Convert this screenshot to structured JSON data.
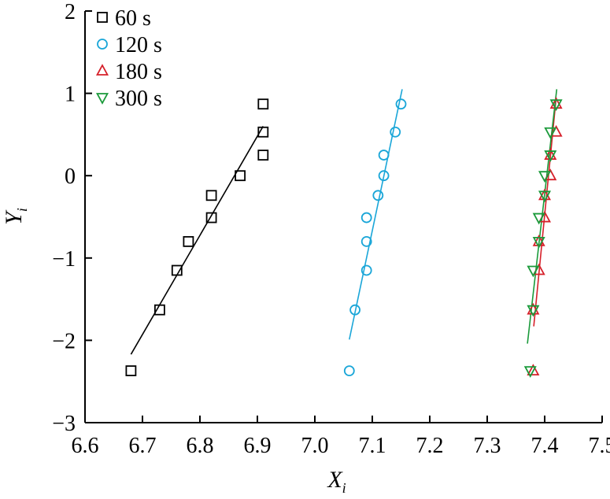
{
  "chart_data": {
    "type": "scatter",
    "xlabel": "X",
    "xlabel_sub": "i",
    "ylabel": "Y",
    "ylabel_sub": "i",
    "xlim": [
      6.6,
      7.5
    ],
    "ylim": [
      -3,
      2
    ],
    "xticks": [
      6.6,
      6.7,
      6.8,
      6.9,
      7.0,
      7.1,
      7.2,
      7.3,
      7.4,
      7.5
    ],
    "xtick_labels": [
      "6.6",
      "6.7",
      "6.8",
      "6.9",
      "7.0",
      "7.1",
      "7.2",
      "7.3",
      "7.4",
      "7.5"
    ],
    "yticks": [
      2,
      1,
      0,
      -1,
      -2,
      -3
    ],
    "ytick_labels": [
      "2",
      "1",
      "0",
      "−1",
      "−2",
      "−3"
    ],
    "grid": false,
    "legend_position": "top-left",
    "series": [
      {
        "name": "60 s",
        "marker": "square",
        "color": "#000000",
        "points": [
          [
            6.68,
            -2.37
          ],
          [
            6.73,
            -1.63
          ],
          [
            6.76,
            -1.15
          ],
          [
            6.78,
            -0.8
          ],
          [
            6.82,
            -0.51
          ],
          [
            6.82,
            -0.24
          ],
          [
            6.87,
            0.0
          ],
          [
            6.91,
            0.25
          ],
          [
            6.91,
            0.53
          ],
          [
            6.91,
            0.87
          ]
        ],
        "fit": [
          [
            6.68,
            -2.17
          ],
          [
            6.91,
            0.6
          ]
        ]
      },
      {
        "name": "120 s",
        "marker": "circle",
        "color": "#1aa6d8",
        "points": [
          [
            7.06,
            -2.37
          ],
          [
            7.07,
            -1.63
          ],
          [
            7.09,
            -1.15
          ],
          [
            7.09,
            -0.8
          ],
          [
            7.09,
            -0.51
          ],
          [
            7.11,
            -0.24
          ],
          [
            7.12,
            0.0
          ],
          [
            7.12,
            0.25
          ],
          [
            7.14,
            0.53
          ],
          [
            7.15,
            0.87
          ]
        ],
        "fit": [
          [
            7.06,
            -1.99
          ],
          [
            7.152,
            1.05
          ]
        ]
      },
      {
        "name": "180 s",
        "marker": "triangle-up",
        "color": "#d6202a",
        "points": [
          [
            7.38,
            -2.37
          ],
          [
            7.38,
            -1.63
          ],
          [
            7.39,
            -1.15
          ],
          [
            7.39,
            -0.8
          ],
          [
            7.4,
            -0.51
          ],
          [
            7.4,
            -0.24
          ],
          [
            7.41,
            0.0
          ],
          [
            7.41,
            0.25
          ],
          [
            7.42,
            0.53
          ],
          [
            7.42,
            0.87
          ]
        ],
        "fit": [
          [
            7.381,
            -1.83
          ],
          [
            7.42,
            0.95
          ]
        ]
      },
      {
        "name": "300 s",
        "marker": "triangle-down",
        "color": "#1a9a3a",
        "points": [
          [
            7.375,
            -2.37
          ],
          [
            7.38,
            -1.63
          ],
          [
            7.38,
            -1.15
          ],
          [
            7.39,
            -0.8
          ],
          [
            7.39,
            -0.51
          ],
          [
            7.4,
            -0.24
          ],
          [
            7.4,
            0.0
          ],
          [
            7.41,
            0.25
          ],
          [
            7.41,
            0.53
          ],
          [
            7.42,
            0.87
          ]
        ],
        "fit": [
          [
            7.37,
            -2.04
          ],
          [
            7.421,
            1.05
          ]
        ]
      }
    ]
  }
}
